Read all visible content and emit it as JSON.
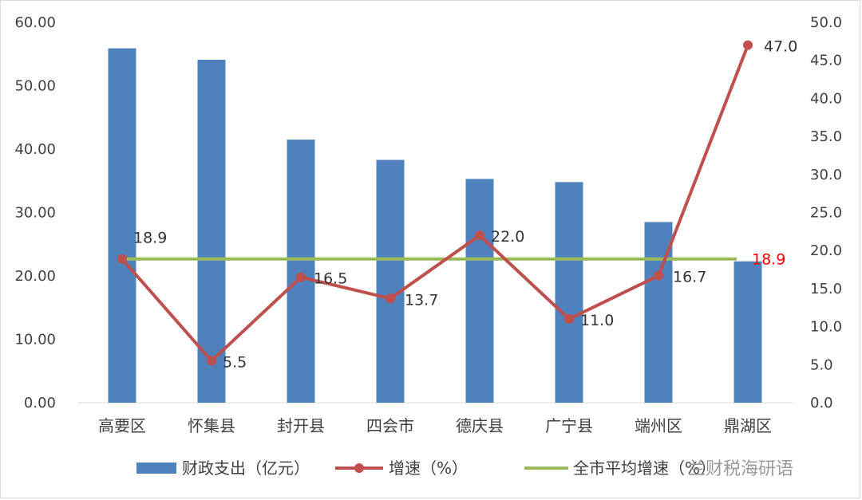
{
  "chart_data": {
    "type": "bar",
    "categories": [
      "高要区",
      "怀集县",
      "封开县",
      "四会市",
      "德庆县",
      "广宁县",
      "端州区",
      "鼎湖区"
    ],
    "colors": {
      "bar": "#4f81bd",
      "line": "#c0504d",
      "avg": "#9bbb59",
      "avg_label": "#ff0000",
      "grid": "#d9d9d9"
    },
    "series": [
      {
        "name": "财政支出（亿元）",
        "type": "bar",
        "axis": "left",
        "values": [
          55.9,
          54.1,
          41.5,
          38.3,
          35.3,
          34.8,
          28.5,
          22.3
        ]
      },
      {
        "name": "增速（%）",
        "type": "line",
        "axis": "right",
        "values": [
          18.9,
          5.5,
          16.5,
          13.7,
          22.0,
          11.0,
          16.7,
          47.0
        ],
        "labels": [
          "18.9",
          "5.5",
          "16.5",
          "13.7",
          "22.0",
          "11.0",
          "16.7",
          "47.0"
        ]
      },
      {
        "name": "全市平均增速（%）",
        "type": "line",
        "axis": "right",
        "value": 18.9,
        "label": "18.9"
      }
    ],
    "y_left": {
      "min": 0,
      "max": 60,
      "step": 10,
      "ticks": [
        "0.00",
        "10.00",
        "20.00",
        "30.00",
        "40.00",
        "50.00",
        "60.00"
      ]
    },
    "y_right": {
      "min": 0,
      "max": 50,
      "step": 5,
      "ticks": [
        "0.0",
        "5.0",
        "10.0",
        "15.0",
        "20.0",
        "25.0",
        "30.0",
        "35.0",
        "40.0",
        "45.0",
        "50.0"
      ]
    },
    "grid": false,
    "legend_position": "bottom"
  },
  "watermark": "兰财税海研语"
}
